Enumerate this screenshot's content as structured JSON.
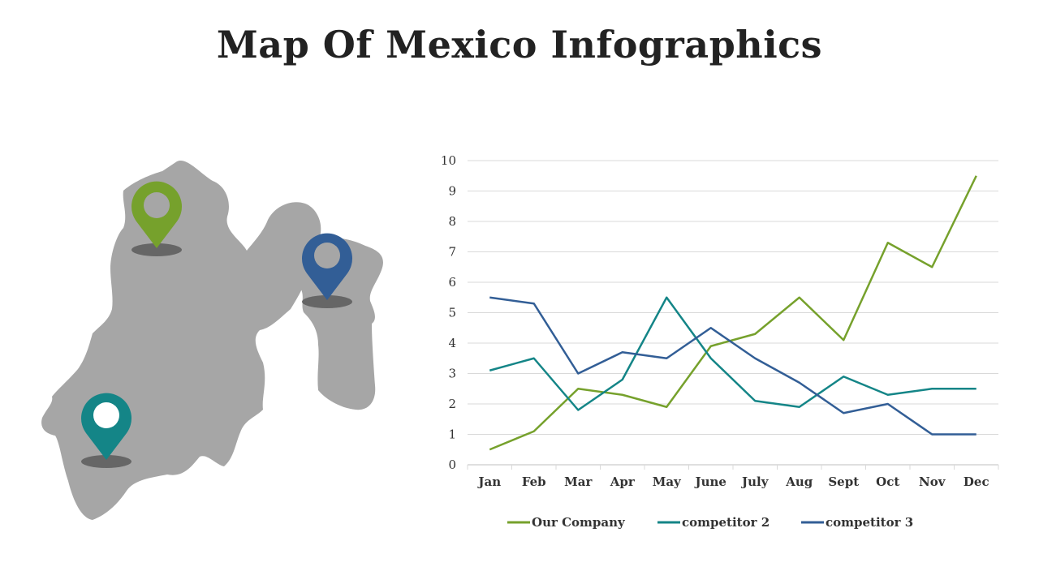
{
  "slide": {
    "title": "Map Of Mexico Infographics"
  },
  "map": {
    "region_color": "#a6a6a6",
    "pins": [
      {
        "name": "green-pin",
        "color": "#76a12c"
      },
      {
        "name": "blue-pin",
        "color": "#325e96"
      },
      {
        "name": "teal-pin",
        "color": "#148587"
      }
    ]
  },
  "chart_data": {
    "type": "line",
    "title": "",
    "xlabel": "",
    "ylabel": "",
    "ylim": [
      0,
      10
    ],
    "yticks": [
      "0",
      "1",
      "2",
      "3",
      "4",
      "5",
      "6",
      "7",
      "8",
      "9",
      "10"
    ],
    "categories": [
      "Jan",
      "Feb",
      "Mar",
      "Apr",
      "May",
      "June",
      "July",
      "Aug",
      "Sept",
      "Oct",
      "Nov",
      "Dec"
    ],
    "grid": true,
    "legend_position": "bottom",
    "series": [
      {
        "name": "Our Company",
        "color": "#76a12c",
        "values": [
          0.5,
          1.1,
          2.5,
          2.3,
          1.9,
          3.9,
          4.3,
          5.5,
          4.1,
          7.3,
          6.5,
          9.5
        ]
      },
      {
        "name": "competitor 2",
        "color": "#148587",
        "values": [
          3.1,
          3.5,
          1.8,
          2.8,
          5.5,
          3.5,
          2.1,
          1.9,
          2.9,
          2.3,
          2.5,
          2.5
        ]
      },
      {
        "name": "competitor 3",
        "color": "#325e96",
        "values": [
          5.5,
          5.3,
          3.0,
          3.7,
          3.5,
          4.5,
          3.5,
          2.7,
          1.7,
          2.0,
          1.0,
          1.0
        ]
      }
    ]
  }
}
